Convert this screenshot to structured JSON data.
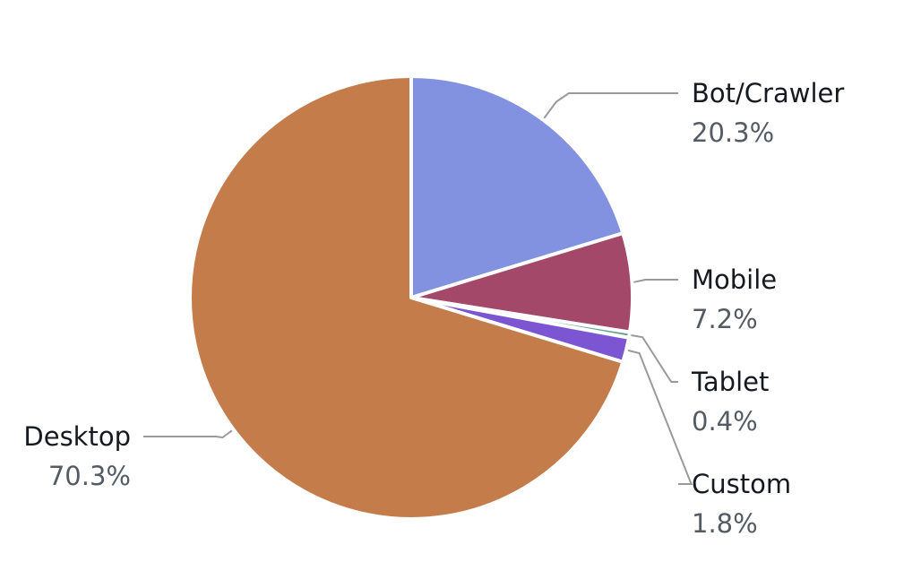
{
  "chart_data": {
    "type": "pie",
    "slices": [
      {
        "name": "Bot/Crawler",
        "percent_label": "20.3%",
        "value": 20.3,
        "color": "#8291e0"
      },
      {
        "name": "Mobile",
        "percent_label": "7.2%",
        "value": 7.2,
        "color": "#a4486a"
      },
      {
        "name": "Tablet",
        "percent_label": "0.4%",
        "value": 0.4,
        "color": "#5fa38f"
      },
      {
        "name": "Custom",
        "percent_label": "1.8%",
        "value": 1.8,
        "color": "#7c55d3"
      },
      {
        "name": "Desktop",
        "percent_label": "70.3%",
        "value": 70.3,
        "color": "#c57c4b"
      }
    ],
    "legend": "none"
  }
}
